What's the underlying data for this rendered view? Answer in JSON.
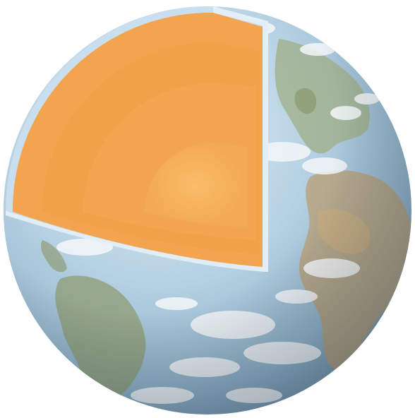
{
  "image": {
    "subject": "earth-cutaway",
    "colors": {
      "background": "#ffffff",
      "ocean_light": "#cfe2ee",
      "ocean_mid": "#9cc0d8",
      "ocean_dark": "#7499b4",
      "land_green": "#8d9a72",
      "land_tan": "#c1a77e",
      "cloud": "#f2f6f8",
      "crust_rim": "#cfe3f2",
      "mantle_outer": "#f3a44e",
      "mantle_mid": "#f2a04a",
      "outer_core": "#f5a851",
      "inner_core": "#f8b560"
    }
  }
}
